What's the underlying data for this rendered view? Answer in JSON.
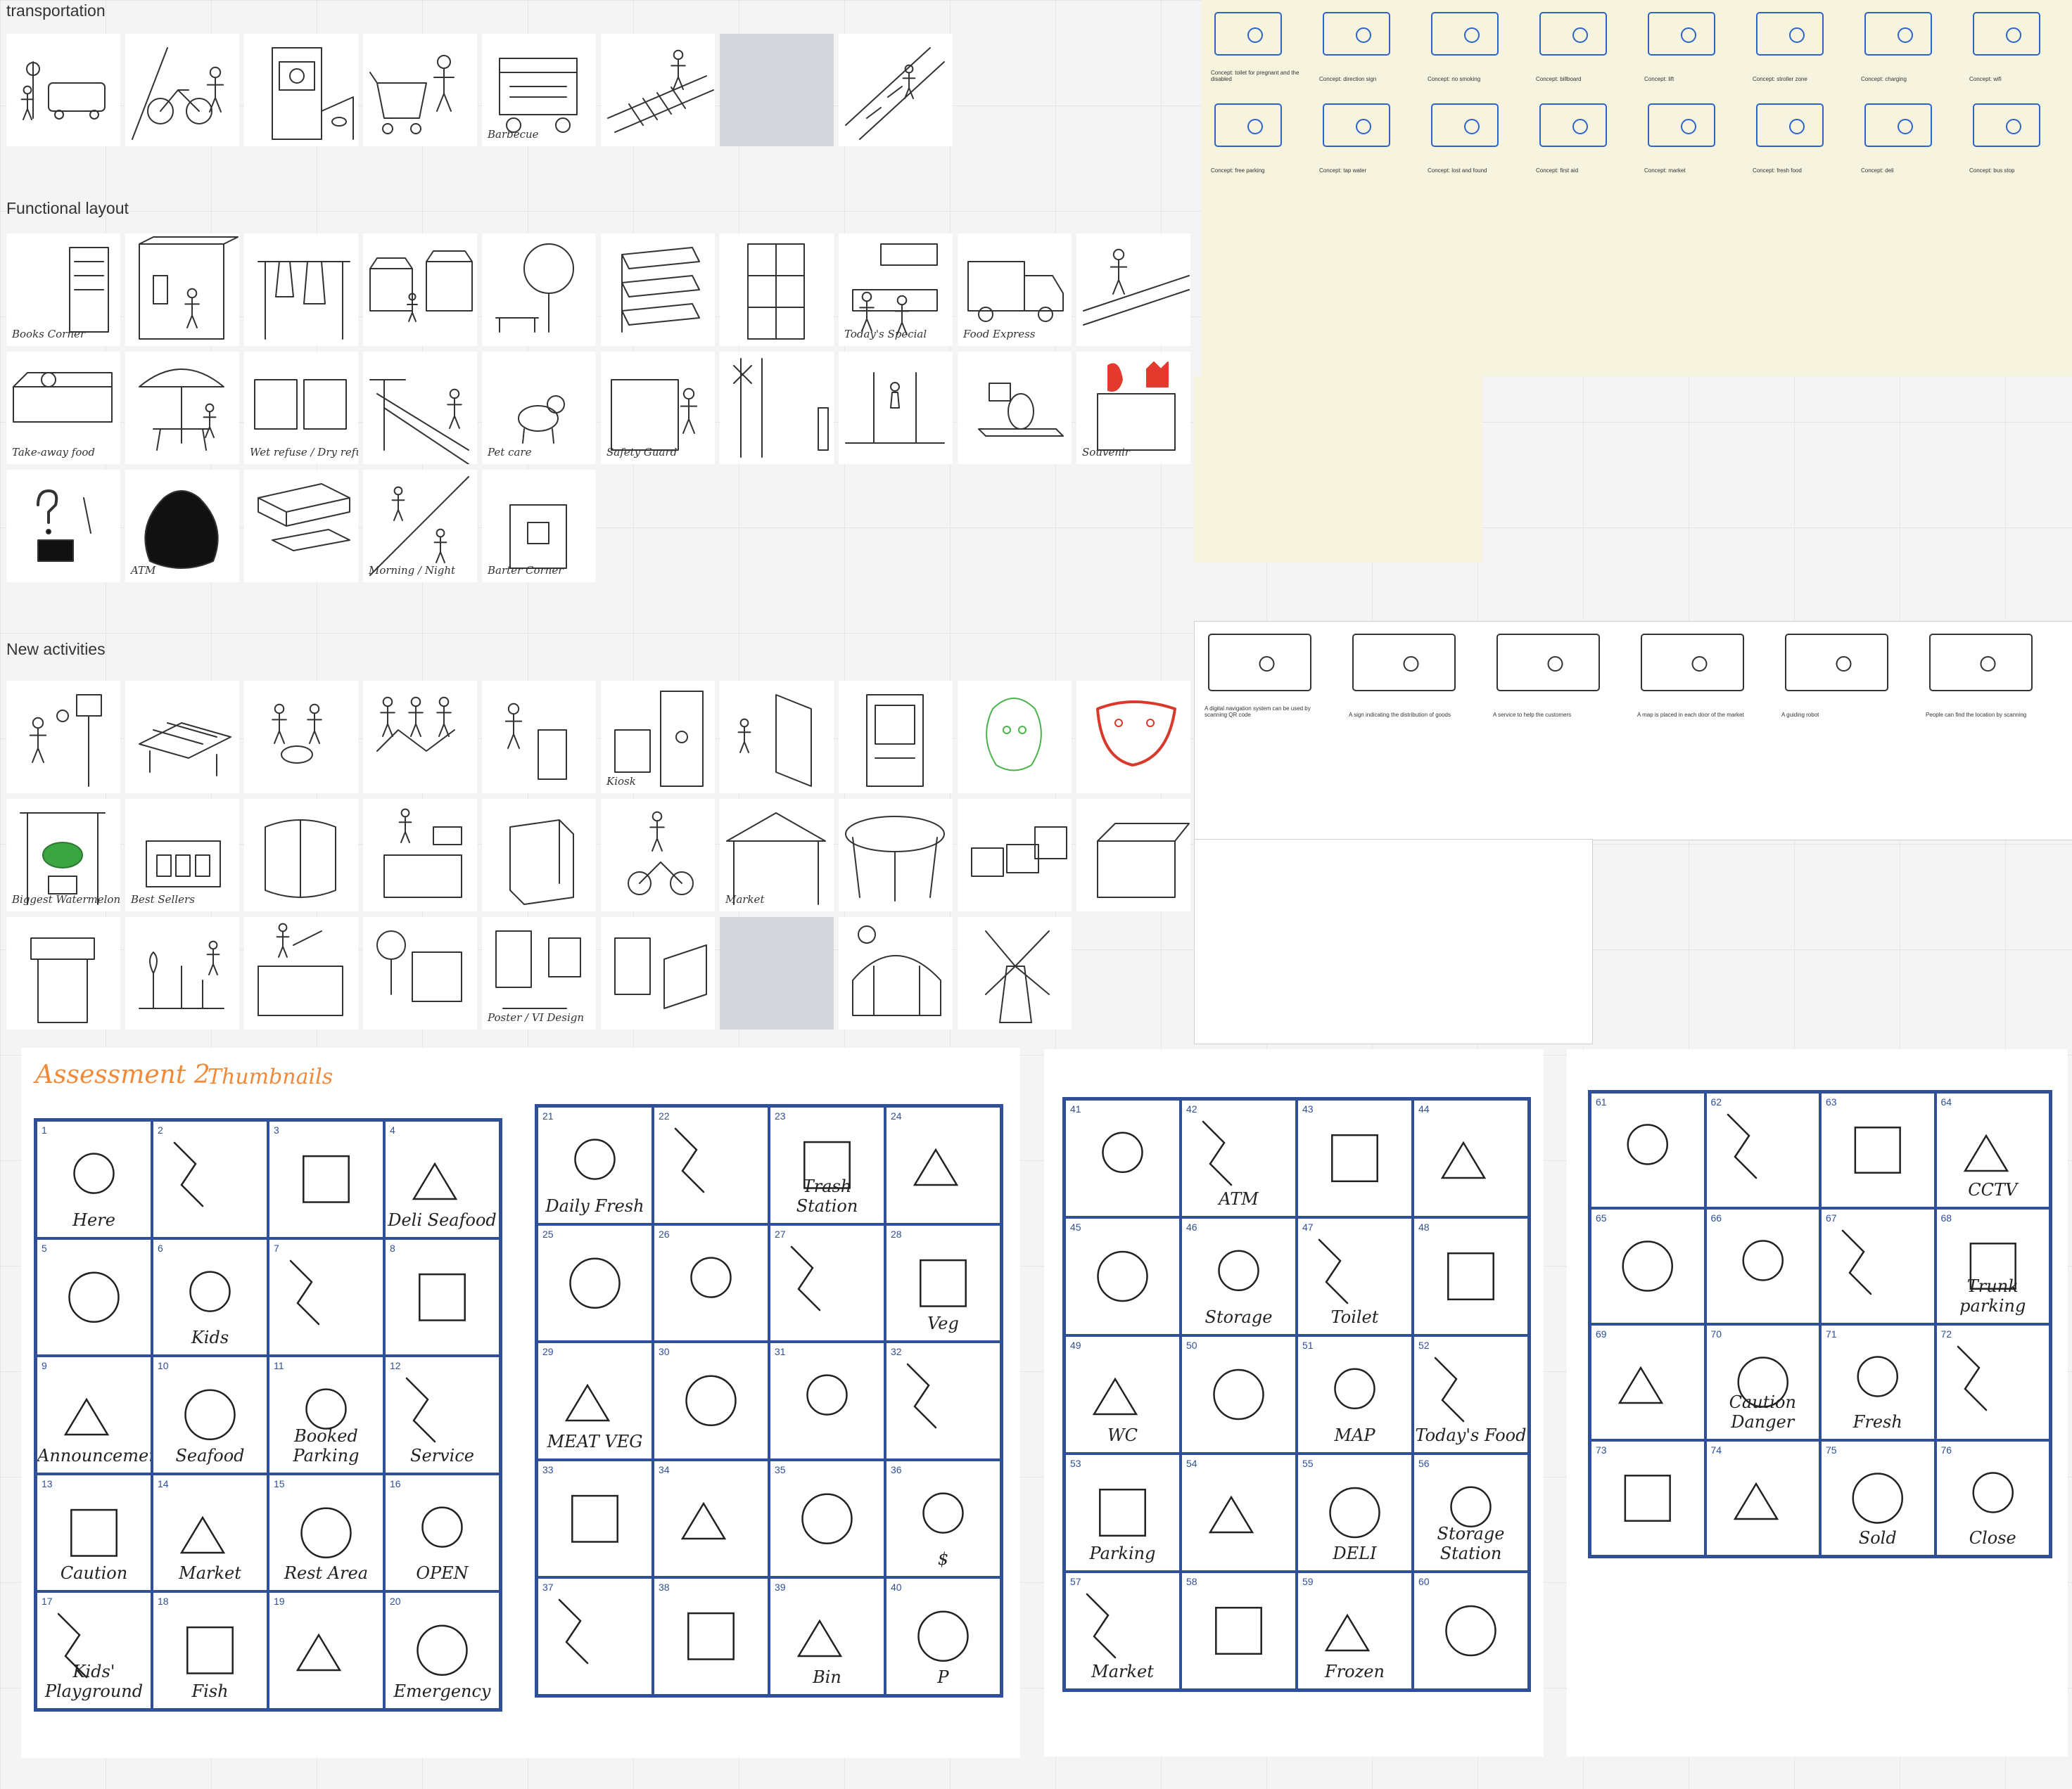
{
  "sections": {
    "transportation": "transportation",
    "functional_layout": "Functional layout",
    "new_activities": "New activities"
  },
  "transport_tiles": [
    {
      "icon": "bus-stop-sketch",
      "caption": ""
    },
    {
      "icon": "bicycle-rider-sketch",
      "caption": ""
    },
    {
      "icon": "ticket-machine-sketch",
      "caption": ""
    },
    {
      "icon": "shopping-cart-sketch",
      "caption": ""
    },
    {
      "icon": "food-cart-sketch",
      "caption": "Barbecue"
    },
    {
      "icon": "crosswalk-sketch",
      "caption": ""
    },
    {
      "icon": "blank",
      "caption": ""
    },
    {
      "icon": "escalator-sketch",
      "caption": ""
    }
  ],
  "layout_row1": [
    {
      "icon": "books-corner-sketch",
      "caption": "Books Corner"
    },
    {
      "icon": "booth-sketch",
      "caption": ""
    },
    {
      "icon": "clothes-rack-sketch",
      "caption": ""
    },
    {
      "icon": "market-stalls-sketch",
      "caption": ""
    },
    {
      "icon": "tree-bench-sketch",
      "caption": ""
    },
    {
      "icon": "shelves-sketch",
      "caption": ""
    },
    {
      "icon": "lockers-sketch",
      "caption": ""
    },
    {
      "icon": "today-special-sketch",
      "caption": "Today's Special"
    },
    {
      "icon": "food-express-sketch",
      "caption": "Food Express"
    },
    {
      "icon": "conveyor-sketch",
      "caption": ""
    }
  ],
  "layout_row2": [
    {
      "icon": "take-away-food-sketch",
      "caption": "Take-away food"
    },
    {
      "icon": "umbrella-table-sketch",
      "caption": ""
    },
    {
      "icon": "recycle-bins-sketch",
      "caption": "Wet refuse / Dry refuse"
    },
    {
      "icon": "slide-area-sketch",
      "caption": ""
    },
    {
      "icon": "pet-care-sketch",
      "caption": "Pet care"
    },
    {
      "icon": "safety-guard-sketch",
      "caption": "Safety Guard"
    },
    {
      "icon": "smoking-area-sketch",
      "caption": ""
    },
    {
      "icon": "toilet-sketch",
      "caption": ""
    },
    {
      "icon": "scale-sketch",
      "caption": ""
    },
    {
      "icon": "souvenir-sketch",
      "caption": "Souvenir"
    }
  ],
  "layout_row3": [
    {
      "icon": "lost-found-sketch",
      "caption": ""
    },
    {
      "icon": "atm-bag-sketch",
      "caption": "ATM"
    },
    {
      "icon": "seating-blocks-sketch",
      "caption": ""
    },
    {
      "icon": "morning-night-sketch",
      "caption": "Morning / Night"
    },
    {
      "icon": "barter-corner-sketch",
      "caption": "Barter Corner"
    }
  ],
  "activities_row1": [
    {
      "icon": "basketball-sketch",
      "caption": ""
    },
    {
      "icon": "solar-table-sketch",
      "caption": ""
    },
    {
      "icon": "band-sketch",
      "caption": ""
    },
    {
      "icon": "dancers-sketch",
      "caption": ""
    },
    {
      "icon": "bin-person-sketch",
      "caption": ""
    },
    {
      "icon": "kiosk-box-sketch",
      "caption": "Kiosk"
    },
    {
      "icon": "door-person-sketch",
      "caption": ""
    },
    {
      "icon": "vending-sketch",
      "caption": ""
    },
    {
      "icon": "green-mascot-sketch",
      "caption": ""
    },
    {
      "icon": "red-mascot-sketch",
      "caption": ""
    }
  ],
  "activities_row2": [
    {
      "icon": "biggest-watermelon-sketch",
      "caption": "Biggest Watermelon"
    },
    {
      "icon": "best-sellers-sketch",
      "caption": "Best Sellers"
    },
    {
      "icon": "glass-booth-sketch",
      "caption": ""
    },
    {
      "icon": "counter-sketch",
      "caption": ""
    },
    {
      "icon": "box-stand-sketch",
      "caption": ""
    },
    {
      "icon": "scooter-sketch",
      "caption": ""
    },
    {
      "icon": "market-tent-sketch",
      "caption": "Market"
    },
    {
      "icon": "dome-tent-sketch",
      "caption": ""
    },
    {
      "icon": "crates-sketch",
      "caption": ""
    },
    {
      "icon": "open-box-sketch",
      "caption": ""
    }
  ],
  "activities_row3": [
    {
      "icon": "kiosk-stand-sketch",
      "caption": ""
    },
    {
      "icon": "garden-sketch",
      "caption": ""
    },
    {
      "icon": "fishing-sketch",
      "caption": ""
    },
    {
      "icon": "stall-tree-sketch",
      "caption": ""
    },
    {
      "icon": "poster-bags-sketch",
      "caption": "Poster / VI Design"
    },
    {
      "icon": "paper-bag-sketch",
      "caption": ""
    },
    {
      "icon": "blank",
      "caption": ""
    },
    {
      "icon": "greenhouse-sketch",
      "caption": ""
    },
    {
      "icon": "windmill-sketch",
      "caption": ""
    }
  ],
  "assessment": {
    "title": "Assessment 2",
    "subtitle": "Thumbnails"
  },
  "board1_cells": [
    {
      "n": "1",
      "label": "Here"
    },
    {
      "n": "2",
      "label": ""
    },
    {
      "n": "3",
      "label": ""
    },
    {
      "n": "4",
      "label": "Deli Seafood"
    },
    {
      "n": "5",
      "label": ""
    },
    {
      "n": "6",
      "label": "Kids"
    },
    {
      "n": "7",
      "label": ""
    },
    {
      "n": "8",
      "label": ""
    },
    {
      "n": "9",
      "label": "Announcement!"
    },
    {
      "n": "10",
      "label": "Seafood"
    },
    {
      "n": "11",
      "label": "Booked Parking"
    },
    {
      "n": "12",
      "label": "Service"
    },
    {
      "n": "13",
      "label": "Caution"
    },
    {
      "n": "14",
      "label": "Market"
    },
    {
      "n": "15",
      "label": "Rest Area"
    },
    {
      "n": "16",
      "label": "OPEN"
    },
    {
      "n": "17",
      "label": "Kids' Playground"
    },
    {
      "n": "18",
      "label": "Fish"
    },
    {
      "n": "19",
      "label": ""
    },
    {
      "n": "20",
      "label": "Emergency"
    }
  ],
  "board2_cells": [
    {
      "n": "21",
      "label": "Daily Fresh"
    },
    {
      "n": "22",
      "label": ""
    },
    {
      "n": "23",
      "label": "Trash Station"
    },
    {
      "n": "24",
      "label": ""
    },
    {
      "n": "25",
      "label": ""
    },
    {
      "n": "26",
      "label": ""
    },
    {
      "n": "27",
      "label": ""
    },
    {
      "n": "28",
      "label": "Veg"
    },
    {
      "n": "29",
      "label": "MEAT VEG"
    },
    {
      "n": "30",
      "label": ""
    },
    {
      "n": "31",
      "label": ""
    },
    {
      "n": "32",
      "label": ""
    },
    {
      "n": "33",
      "label": ""
    },
    {
      "n": "34",
      "label": ""
    },
    {
      "n": "35",
      "label": ""
    },
    {
      "n": "36",
      "label": "$"
    },
    {
      "n": "37",
      "label": ""
    },
    {
      "n": "38",
      "label": ""
    },
    {
      "n": "39",
      "label": "Bin"
    },
    {
      "n": "40",
      "label": "P"
    }
  ],
  "board3_cells": [
    {
      "n": "41",
      "label": ""
    },
    {
      "n": "42",
      "label": "ATM"
    },
    {
      "n": "43",
      "label": ""
    },
    {
      "n": "44",
      "label": ""
    },
    {
      "n": "45",
      "label": ""
    },
    {
      "n": "46",
      "label": "Storage"
    },
    {
      "n": "47",
      "label": "Toilet"
    },
    {
      "n": "48",
      "label": ""
    },
    {
      "n": "49",
      "label": "WC"
    },
    {
      "n": "50",
      "label": ""
    },
    {
      "n": "51",
      "label": "MAP"
    },
    {
      "n": "52",
      "label": "Today's Food"
    },
    {
      "n": "53",
      "label": "Parking"
    },
    {
      "n": "54",
      "label": ""
    },
    {
      "n": "55",
      "label": "DELI"
    },
    {
      "n": "56",
      "label": "Storage Station"
    },
    {
      "n": "57",
      "label": "Market"
    },
    {
      "n": "58",
      "label": ""
    },
    {
      "n": "59",
      "label": "Frozen"
    },
    {
      "n": "60",
      "label": ""
    }
  ],
  "board4_cells": [
    {
      "n": "61",
      "label": ""
    },
    {
      "n": "62",
      "label": ""
    },
    {
      "n": "63",
      "label": ""
    },
    {
      "n": "64",
      "label": "CCTV"
    },
    {
      "n": "65",
      "label": ""
    },
    {
      "n": "66",
      "label": ""
    },
    {
      "n": "67",
      "label": ""
    },
    {
      "n": "68",
      "label": "Trunk parking"
    },
    {
      "n": "69",
      "label": ""
    },
    {
      "n": "70",
      "label": "Caution Danger"
    },
    {
      "n": "71",
      "label": "Fresh"
    },
    {
      "n": "72",
      "label": ""
    },
    {
      "n": "73",
      "label": ""
    },
    {
      "n": "74",
      "label": ""
    },
    {
      "n": "75",
      "label": "Sold"
    },
    {
      "n": "76",
      "label": "Close"
    }
  ],
  "collage_cream_notes": [
    "Concept: toilet for pregnant and the disabled",
    "Concept: direction sign",
    "Concept: no smoking",
    "Concept: billboard",
    "Concept: lift",
    "Concept: stroller zone",
    "Concept: charging",
    "Concept: wifi",
    "Concept: free parking",
    "Concept: tap water",
    "Concept: lost and found",
    "Concept: first aid",
    "Concept: market",
    "Concept: fresh food",
    "Concept: deli",
    "Concept: bus stop"
  ],
  "collage_story_notes": [
    "A digital navigation system can be used by scanning QR code",
    "A sign indicating the distribution of goods",
    "A service to help the customers",
    "A map is placed in each door of the market",
    "A guiding robot",
    "People can find the location by scanning"
  ],
  "colors": {
    "accent": "#f08a3a",
    "grid": "#2f4f9a",
    "tile": "#ffffff",
    "canvas": "#f4f4f4"
  }
}
